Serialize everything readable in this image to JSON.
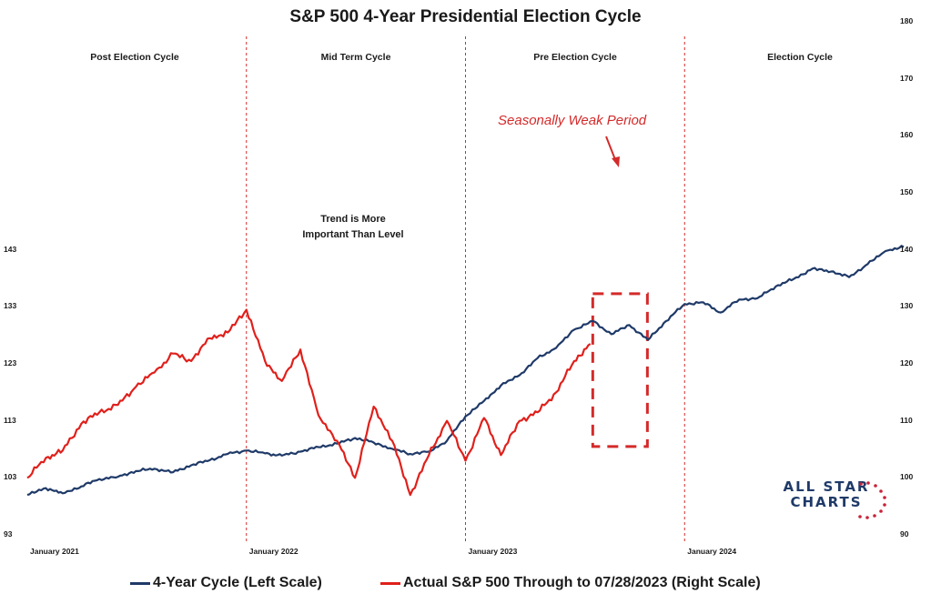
{
  "chart_data": {
    "type": "line",
    "title": "S&P 500 4-Year Presidential Election Cycle",
    "phases": [
      "Post Election Cycle",
      "Mid Term Cycle",
      "Pre Election Cycle",
      "Election Cycle"
    ],
    "x_ticks": [
      "January 2021",
      "January 2022",
      "January 2023",
      "January 2024"
    ],
    "x_range": [
      "2021-01-01",
      "2024-12-31"
    ],
    "phase_dividers": [
      "2022-01-01",
      "2023-01-01",
      "2024-01-01"
    ],
    "left_axis": {
      "ylim": [
        93,
        183
      ],
      "ticks": [
        93,
        103,
        113,
        123,
        133,
        143
      ]
    },
    "right_axis": {
      "ylim": [
        90,
        180
      ],
      "ticks": [
        90,
        100,
        110,
        120,
        130,
        140,
        150,
        160,
        170,
        180
      ]
    },
    "annotations": {
      "trend_note": [
        "Trend is More",
        "Important Than Level"
      ],
      "callout": "Seasonally Weak Period",
      "weak_period": [
        "2023-08-01",
        "2023-10-31"
      ]
    },
    "series": [
      {
        "name": "4-Year Cycle (Left Scale)",
        "axis": "left",
        "color": "#1f3a68",
        "points": [
          [
            "2021-01-01",
            100.0
          ],
          [
            "2021-02-01",
            101.2
          ],
          [
            "2021-03-01",
            100.3
          ],
          [
            "2021-04-01",
            101.5
          ],
          [
            "2021-05-01",
            102.8
          ],
          [
            "2021-06-01",
            103.2
          ],
          [
            "2021-07-01",
            104.2
          ],
          [
            "2021-08-01",
            104.6
          ],
          [
            "2021-09-01",
            104.0
          ],
          [
            "2021-10-01",
            105.2
          ],
          [
            "2021-11-01",
            106.1
          ],
          [
            "2021-12-01",
            107.2
          ],
          [
            "2022-01-01",
            107.8
          ],
          [
            "2022-02-01",
            107.3
          ],
          [
            "2022-03-01",
            106.9
          ],
          [
            "2022-04-01",
            107.6
          ],
          [
            "2022-05-01",
            108.4
          ],
          [
            "2022-06-01",
            109.0
          ],
          [
            "2022-07-01",
            110.0
          ],
          [
            "2022-08-01",
            109.2
          ],
          [
            "2022-09-01",
            108.1
          ],
          [
            "2022-10-01",
            107.2
          ],
          [
            "2022-11-01",
            107.6
          ],
          [
            "2022-12-01",
            109.5
          ],
          [
            "2023-01-01",
            113.8
          ],
          [
            "2023-02-01",
            116.5
          ],
          [
            "2023-03-01",
            119.2
          ],
          [
            "2023-04-01",
            121.0
          ],
          [
            "2023-05-01",
            124.0
          ],
          [
            "2023-06-01",
            125.8
          ],
          [
            "2023-07-01",
            129.0
          ],
          [
            "2023-08-01",
            130.5
          ],
          [
            "2023-09-01",
            128.2
          ],
          [
            "2023-10-01",
            129.8
          ],
          [
            "2023-11-01",
            127.2
          ],
          [
            "2023-12-01",
            130.5
          ],
          [
            "2024-01-01",
            133.5
          ],
          [
            "2024-02-01",
            133.8
          ],
          [
            "2024-03-01",
            132.0
          ],
          [
            "2024-04-01",
            134.3
          ],
          [
            "2024-05-01",
            134.5
          ],
          [
            "2024-06-01",
            136.6
          ],
          [
            "2024-07-01",
            137.9
          ],
          [
            "2024-08-01",
            139.7
          ],
          [
            "2024-09-01",
            139.2
          ],
          [
            "2024-10-01",
            138.2
          ],
          [
            "2024-11-01",
            140.5
          ],
          [
            "2024-12-01",
            142.8
          ],
          [
            "2024-12-31",
            143.5
          ]
        ]
      },
      {
        "name": "Actual S&P 500 Through to 07/28/2023 (Right Scale)",
        "axis": "right",
        "color": "#e0201b",
        "points": [
          [
            "2021-01-01",
            100.0
          ],
          [
            "2021-02-01",
            103.5
          ],
          [
            "2021-03-01",
            104.8
          ],
          [
            "2021-04-01",
            109.5
          ],
          [
            "2021-05-01",
            111.5
          ],
          [
            "2021-06-01",
            112.8
          ],
          [
            "2021-07-01",
            116.0
          ],
          [
            "2021-08-01",
            118.5
          ],
          [
            "2021-09-01",
            121.8
          ],
          [
            "2021-10-01",
            120.5
          ],
          [
            "2021-11-01",
            124.5
          ],
          [
            "2021-12-01",
            125.5
          ],
          [
            "2022-01-01",
            129.5
          ],
          [
            "2022-02-01",
            120.5
          ],
          [
            "2022-03-01",
            117.0
          ],
          [
            "2022-04-01",
            122.5
          ],
          [
            "2022-05-01",
            111.0
          ],
          [
            "2022-06-01",
            106.5
          ],
          [
            "2022-07-01",
            100.0
          ],
          [
            "2022-08-01",
            112.5
          ],
          [
            "2022-09-01",
            106.5
          ],
          [
            "2022-10-01",
            97.0
          ],
          [
            "2022-11-01",
            104.0
          ],
          [
            "2022-12-01",
            110.0
          ],
          [
            "2023-01-01",
            103.0
          ],
          [
            "2023-02-01",
            110.5
          ],
          [
            "2023-03-01",
            104.0
          ],
          [
            "2023-04-01",
            110.0
          ],
          [
            "2023-05-01",
            111.5
          ],
          [
            "2023-06-01",
            115.0
          ],
          [
            "2023-07-01",
            120.5
          ],
          [
            "2023-07-28",
            123.5
          ]
        ]
      }
    ],
    "legend_position": "bottom"
  },
  "legend": {
    "item1": "4-Year Cycle (Left Scale)",
    "item2": "Actual S&P 500 Through to 07/28/2023 (Right Scale)"
  },
  "logo": {
    "line1": "ALL STAR",
    "line2": "CHARTS"
  }
}
